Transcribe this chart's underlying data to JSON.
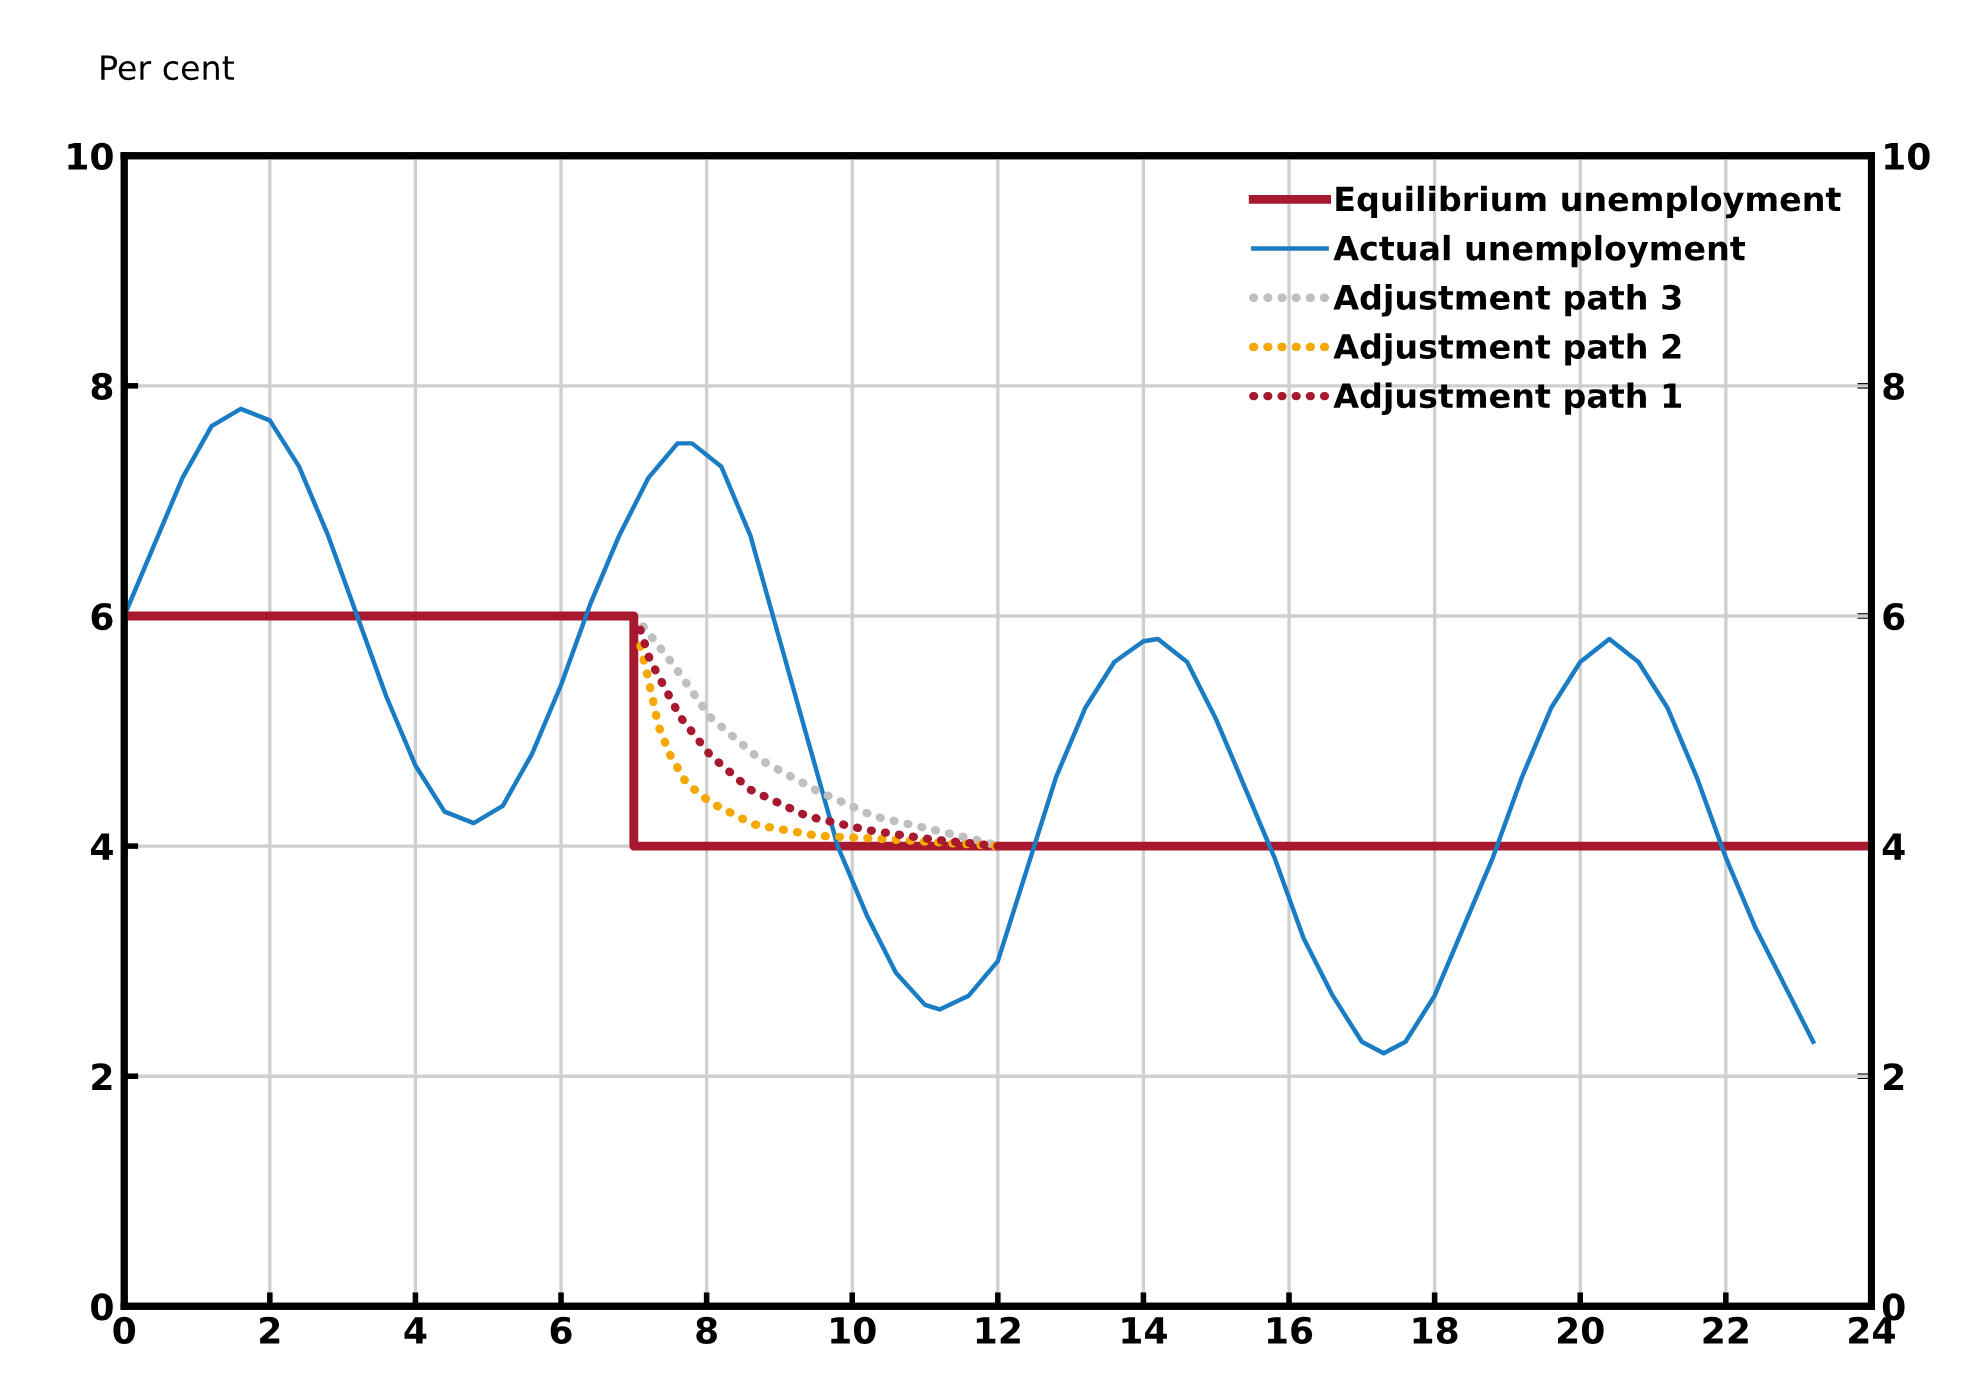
{
  "chart_data": {
    "type": "line",
    "ylabel": "Per cent",
    "xlim": [
      0,
      24
    ],
    "xticks": [
      0,
      2,
      4,
      6,
      8,
      10,
      12,
      14,
      16,
      18,
      20,
      22,
      24
    ],
    "ylim": [
      0,
      10
    ],
    "yticks": [
      0,
      2,
      4,
      6,
      8,
      10
    ],
    "y2lim": [
      0,
      10
    ],
    "y2ticks": [
      0,
      2,
      4,
      6,
      8,
      10
    ],
    "grid": true,
    "legend": "top right",
    "series": [
      {
        "name": "Equilibrium unemployment",
        "type": "step",
        "color": "#a6192e",
        "line_style": "solid",
        "x": [
          0,
          7,
          24
        ],
        "values": [
          6,
          4,
          4
        ]
      },
      {
        "name": "Actual unemployment",
        "color": "#1a7dc4",
        "line_style": "solid",
        "x": [
          0,
          0.4,
          0.8,
          1.2,
          1.6,
          2.0,
          2.4,
          2.8,
          3.2,
          3.6,
          4.0,
          4.4,
          4.8,
          5.2,
          5.6,
          6.0,
          6.4,
          6.8,
          7.2,
          7.6,
          7.8,
          8.2,
          8.6,
          9.0,
          9.4,
          9.8,
          10.2,
          10.6,
          11.0,
          11.2,
          11.6,
          12.0,
          12.4,
          12.8,
          13.2,
          13.6,
          14.0,
          14.2,
          14.6,
          15.0,
          15.4,
          15.8,
          16.2,
          16.6,
          17.0,
          17.3,
          17.6,
          18.0,
          18.4,
          18.8,
          19.2,
          19.6,
          20.0,
          20.4,
          20.8,
          21.2,
          21.6,
          22.0,
          22.4,
          22.8,
          23.2
        ],
        "values": [
          6.0,
          6.6,
          7.2,
          7.65,
          7.8,
          7.7,
          7.3,
          6.7,
          6.0,
          5.3,
          4.7,
          4.3,
          4.2,
          4.35,
          4.8,
          5.4,
          6.1,
          6.7,
          7.2,
          7.5,
          7.5,
          7.3,
          6.7,
          5.8,
          4.9,
          4.0,
          3.4,
          2.9,
          2.62,
          2.58,
          2.7,
          3.0,
          3.8,
          4.6,
          5.2,
          5.6,
          5.78,
          5.8,
          5.6,
          5.1,
          4.5,
          3.9,
          3.2,
          2.7,
          2.3,
          2.2,
          2.3,
          2.7,
          3.3,
          3.9,
          4.6,
          5.2,
          5.6,
          5.8,
          5.6,
          5.2,
          4.6,
          3.9,
          3.3,
          2.8,
          2.3
        ]
      },
      {
        "name": "Adjustment path 3",
        "color": "#bfbfbf",
        "line_style": "dotted",
        "x": [
          7.13,
          7.55,
          8.05,
          8.74,
          9.52,
          10.3,
          11.26,
          11.86,
          12
        ],
        "values": [
          5.91,
          5.57,
          5.12,
          4.75,
          4.48,
          4.26,
          4.12,
          4.03,
          4
        ]
      },
      {
        "name": "Adjustment path 2",
        "color": "#f5a800",
        "line_style": "dotted",
        "x": [
          7.09,
          7.2,
          7.34,
          7.5,
          7.72,
          8.05,
          8.64,
          9.52,
          10.48,
          12
        ],
        "values": [
          5.74,
          5.45,
          5.04,
          4.79,
          4.55,
          4.38,
          4.19,
          4.09,
          4.06,
          4
        ]
      },
      {
        "name": "Adjustment path 1",
        "color": "#a6192e",
        "line_style": "dotted",
        "x": [
          7.09,
          7.22,
          7.64,
          8.05,
          8.6,
          9.38,
          10.2,
          11.07,
          12
        ],
        "values": [
          5.88,
          5.62,
          5.12,
          4.79,
          4.49,
          4.26,
          4.14,
          4.06,
          4
        ]
      }
    ]
  }
}
